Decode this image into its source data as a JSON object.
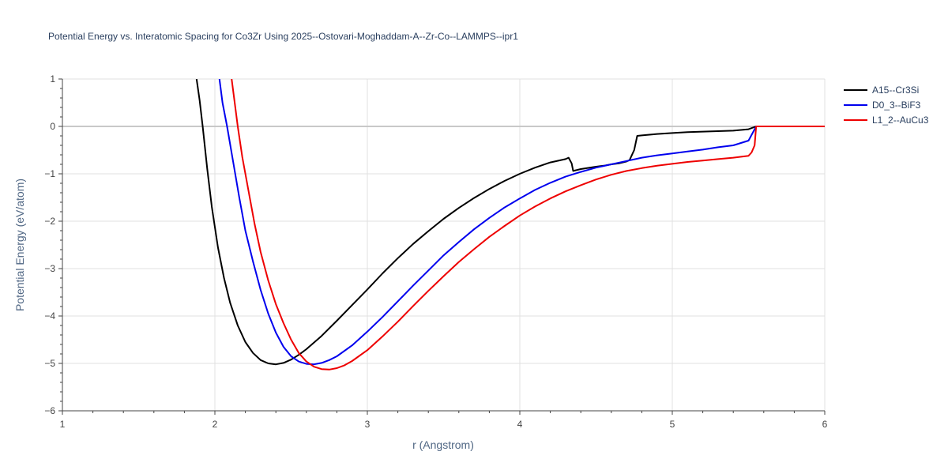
{
  "chart_data": {
    "type": "line",
    "title": "Potential Energy vs. Interatomic Spacing for Co3Zr Using 2025--Ostovari-Moghaddam-A--Zr-Co--LAMMPS--ipr1",
    "xlabel": "r (Angstrom)",
    "ylabel": "Potential Energy (eV/atom)",
    "xlim": [
      1,
      6
    ],
    "ylim": [
      -6,
      1
    ],
    "x_ticks": [
      1,
      2,
      3,
      4,
      5,
      6
    ],
    "y_ticks": [
      1,
      0,
      -1,
      -2,
      -3,
      -4,
      -5,
      -6
    ],
    "x_tick_labels": [
      "1",
      "2",
      "3",
      "4",
      "5",
      "6"
    ],
    "y_tick_labels": [
      "1",
      "0",
      "−1",
      "−2",
      "−3",
      "−4",
      "−5",
      "−6"
    ],
    "grid": true,
    "legend_position": "top-right",
    "series": [
      {
        "name": "A15--Cr3Si",
        "color": "#000000",
        "points": [
          [
            1.88,
            1.0
          ],
          [
            1.9,
            0.55
          ],
          [
            1.92,
            0.0
          ],
          [
            1.95,
            -0.9
          ],
          [
            1.98,
            -1.7
          ],
          [
            2.02,
            -2.55
          ],
          [
            2.06,
            -3.2
          ],
          [
            2.1,
            -3.72
          ],
          [
            2.15,
            -4.2
          ],
          [
            2.2,
            -4.55
          ],
          [
            2.25,
            -4.78
          ],
          [
            2.3,
            -4.93
          ],
          [
            2.35,
            -5.0
          ],
          [
            2.4,
            -5.02
          ],
          [
            2.45,
            -4.99
          ],
          [
            2.5,
            -4.92
          ],
          [
            2.55,
            -4.82
          ],
          [
            2.6,
            -4.7
          ],
          [
            2.7,
            -4.42
          ],
          [
            2.8,
            -4.1
          ],
          [
            2.9,
            -3.77
          ],
          [
            3.0,
            -3.44
          ],
          [
            3.1,
            -3.1
          ],
          [
            3.2,
            -2.78
          ],
          [
            3.3,
            -2.48
          ],
          [
            3.4,
            -2.21
          ],
          [
            3.5,
            -1.95
          ],
          [
            3.6,
            -1.72
          ],
          [
            3.7,
            -1.51
          ],
          [
            3.8,
            -1.32
          ],
          [
            3.9,
            -1.15
          ],
          [
            4.0,
            -1.0
          ],
          [
            4.1,
            -0.87
          ],
          [
            4.2,
            -0.76
          ],
          [
            4.3,
            -0.69
          ],
          [
            4.32,
            -0.66
          ],
          [
            4.34,
            -0.78
          ],
          [
            4.35,
            -0.94
          ],
          [
            4.4,
            -0.9
          ],
          [
            4.5,
            -0.85
          ],
          [
            4.55,
            -0.83
          ],
          [
            4.6,
            -0.8
          ],
          [
            4.65,
            -0.78
          ],
          [
            4.7,
            -0.74
          ],
          [
            4.72,
            -0.71
          ],
          [
            4.75,
            -0.5
          ],
          [
            4.77,
            -0.2
          ],
          [
            4.8,
            -0.19
          ],
          [
            4.9,
            -0.16
          ],
          [
            5.0,
            -0.14
          ],
          [
            5.1,
            -0.12
          ],
          [
            5.2,
            -0.11
          ],
          [
            5.3,
            -0.1
          ],
          [
            5.4,
            -0.09
          ],
          [
            5.5,
            -0.06
          ],
          [
            5.55,
            0.0
          ],
          [
            5.6,
            0.0
          ],
          [
            6.0,
            0.0
          ]
        ]
      },
      {
        "name": "D0_3--BiF3",
        "color": "#0000ee",
        "points": [
          [
            2.03,
            1.0
          ],
          [
            2.05,
            0.5
          ],
          [
            2.08,
            0.0
          ],
          [
            2.12,
            -0.75
          ],
          [
            2.16,
            -1.5
          ],
          [
            2.2,
            -2.2
          ],
          [
            2.25,
            -2.85
          ],
          [
            2.3,
            -3.45
          ],
          [
            2.35,
            -3.95
          ],
          [
            2.4,
            -4.35
          ],
          [
            2.45,
            -4.65
          ],
          [
            2.5,
            -4.85
          ],
          [
            2.55,
            -4.96
          ],
          [
            2.6,
            -5.01
          ],
          [
            2.65,
            -5.02
          ],
          [
            2.7,
            -4.99
          ],
          [
            2.75,
            -4.93
          ],
          [
            2.8,
            -4.85
          ],
          [
            2.9,
            -4.62
          ],
          [
            3.0,
            -4.33
          ],
          [
            3.1,
            -4.02
          ],
          [
            3.2,
            -3.69
          ],
          [
            3.3,
            -3.36
          ],
          [
            3.4,
            -3.04
          ],
          [
            3.5,
            -2.72
          ],
          [
            3.6,
            -2.44
          ],
          [
            3.7,
            -2.17
          ],
          [
            3.8,
            -1.93
          ],
          [
            3.9,
            -1.71
          ],
          [
            4.0,
            -1.52
          ],
          [
            4.1,
            -1.34
          ],
          [
            4.2,
            -1.19
          ],
          [
            4.3,
            -1.06
          ],
          [
            4.4,
            -0.96
          ],
          [
            4.5,
            -0.87
          ],
          [
            4.6,
            -0.8
          ],
          [
            4.7,
            -0.73
          ],
          [
            4.8,
            -0.66
          ],
          [
            4.9,
            -0.61
          ],
          [
            5.0,
            -0.57
          ],
          [
            5.1,
            -0.53
          ],
          [
            5.2,
            -0.49
          ],
          [
            5.3,
            -0.44
          ],
          [
            5.4,
            -0.4
          ],
          [
            5.5,
            -0.3
          ],
          [
            5.55,
            0.0
          ],
          [
            5.6,
            0.0
          ],
          [
            6.0,
            0.0
          ]
        ]
      },
      {
        "name": "L1_2--AuCu3",
        "color": "#ee0000",
        "points": [
          [
            2.11,
            1.0
          ],
          [
            2.13,
            0.5
          ],
          [
            2.15,
            0.0
          ],
          [
            2.18,
            -0.65
          ],
          [
            2.22,
            -1.35
          ],
          [
            2.26,
            -2.05
          ],
          [
            2.3,
            -2.65
          ],
          [
            2.35,
            -3.25
          ],
          [
            2.4,
            -3.75
          ],
          [
            2.45,
            -4.15
          ],
          [
            2.5,
            -4.5
          ],
          [
            2.55,
            -4.78
          ],
          [
            2.6,
            -4.96
          ],
          [
            2.65,
            -5.07
          ],
          [
            2.7,
            -5.12
          ],
          [
            2.75,
            -5.13
          ],
          [
            2.8,
            -5.1
          ],
          [
            2.85,
            -5.04
          ],
          [
            2.9,
            -4.95
          ],
          [
            3.0,
            -4.72
          ],
          [
            3.1,
            -4.43
          ],
          [
            3.2,
            -4.12
          ],
          [
            3.3,
            -3.79
          ],
          [
            3.4,
            -3.47
          ],
          [
            3.5,
            -3.16
          ],
          [
            3.6,
            -2.86
          ],
          [
            3.7,
            -2.59
          ],
          [
            3.8,
            -2.33
          ],
          [
            3.9,
            -2.1
          ],
          [
            4.0,
            -1.88
          ],
          [
            4.1,
            -1.69
          ],
          [
            4.2,
            -1.52
          ],
          [
            4.3,
            -1.37
          ],
          [
            4.4,
            -1.24
          ],
          [
            4.5,
            -1.12
          ],
          [
            4.6,
            -1.02
          ],
          [
            4.7,
            -0.94
          ],
          [
            4.8,
            -0.88
          ],
          [
            4.9,
            -0.83
          ],
          [
            5.0,
            -0.79
          ],
          [
            5.1,
            -0.75
          ],
          [
            5.2,
            -0.72
          ],
          [
            5.3,
            -0.69
          ],
          [
            5.4,
            -0.66
          ],
          [
            5.5,
            -0.62
          ],
          [
            5.52,
            -0.55
          ],
          [
            5.54,
            -0.4
          ],
          [
            5.55,
            0.0
          ],
          [
            5.6,
            0.0
          ],
          [
            6.0,
            0.0
          ]
        ]
      }
    ]
  }
}
